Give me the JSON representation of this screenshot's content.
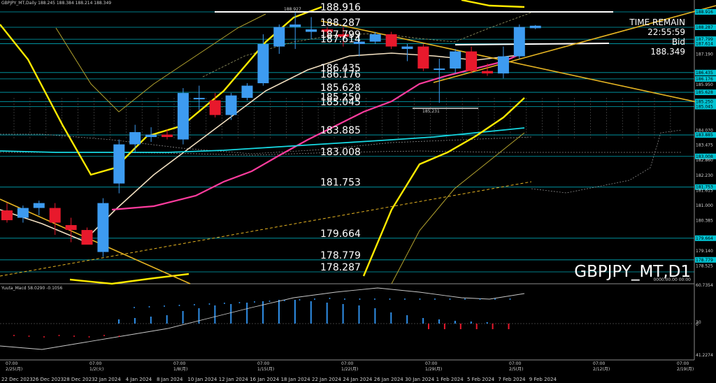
{
  "header": {
    "text": "GBPJPY_MT,Daily  188.245 188.384 188.214 188.349"
  },
  "watermark": "GBPJPY_MT,D1",
  "overlay": {
    "time_remain_label": "TIME REMAIN",
    "time_remain": "22:55:59",
    "bid_label": "Bid",
    "bid": "188.349"
  },
  "macd_label": "Yuuta_Macd 58.0290 -0.1056",
  "macd_zero_label": "0000.00.00 00:00",
  "colors": {
    "bull": "#3d9bf0",
    "bear": "#e8192c",
    "level": "#00c4d4",
    "ma_yellow": "#ffea00",
    "ma_pink": "#ff3c9e",
    "ma_cyan": "#17d9e3",
    "ma_beige": "#f1dfc0",
    "trend": "#e6b422",
    "grid": "#2a6fa3",
    "hist": "#2f8fe8"
  },
  "price_levels": [
    {
      "label": "188.916"
    },
    {
      "label": "188.287"
    },
    {
      "label": "187.799"
    },
    {
      "label": "187.614"
    },
    {
      "label": "186.435"
    },
    {
      "label": "186.176"
    },
    {
      "label": "185.628"
    },
    {
      "label": "185.250"
    },
    {
      "label": "185.045"
    },
    {
      "label": "183.885"
    },
    {
      "label": "183.008"
    },
    {
      "label": "181.753"
    },
    {
      "label": "179.664"
    },
    {
      "label": "178.779"
    },
    {
      "label": "178.287"
    }
  ],
  "extra_labels": [
    {
      "label": "188.927"
    },
    {
      "label": "185.231"
    }
  ],
  "right_axis": [
    "188.916",
    "188.287",
    "187.799",
    "187.614",
    "187.190",
    "186.435",
    "186.176",
    "185.950",
    "185.628",
    "185.250",
    "185.045",
    "184.070",
    "183.885",
    "183.475",
    "183.008",
    "182.860",
    "182.230",
    "181.753",
    "181.615",
    "181.000",
    "180.385",
    "179.664",
    "179.140",
    "178.779",
    "178.525"
  ],
  "macd_axis": [
    "60.7354",
    "30",
    "0",
    "41.2274"
  ],
  "time_axis": [
    {
      "t": "07:00",
      "d": "2/25(月)"
    },
    {
      "t": "07:00",
      "d": "1/2(火)"
    },
    {
      "t": "07:00",
      "d": "1/8(月)"
    },
    {
      "t": "07:00",
      "d": "1/15(月)"
    },
    {
      "t": "07:00",
      "d": "1/22(月)"
    },
    {
      "t": "07:00",
      "d": "1/29(月)"
    },
    {
      "t": "07:00",
      "d": "2/5(月)"
    },
    {
      "t": "07:00",
      "d": "2/12(月)"
    },
    {
      "t": "07:00",
      "d": "2/19(月)"
    }
  ],
  "date_axis": [
    "22 Dec 2023",
    "26 Dec 2023",
    "28 Dec 2023",
    "2 Jan 2024",
    "4 Jan 2024",
    "8 Jan 2024",
    "10 Jan 2024",
    "12 Jan 2024",
    "16 Jan 2024",
    "18 Jan 2024",
    "22 Jan 2024",
    "24 Jan 2024",
    "26 Jan 2024",
    "30 Jan 2024",
    "1 Feb 2024",
    "5 Feb 2024",
    "7 Feb 2024",
    "9 Feb 2024"
  ],
  "chart_data": {
    "type": "candlestick",
    "symbol": "GBPJPY_MT",
    "timeframe": "D1",
    "ylim": [
      178.4,
      189.2
    ],
    "candles": [
      {
        "o": 180.8,
        "h": 181.1,
        "l": 180.3,
        "c": 180.4
      },
      {
        "o": 180.5,
        "h": 181.0,
        "l": 180.3,
        "c": 180.9
      },
      {
        "o": 180.9,
        "h": 181.2,
        "l": 180.6,
        "c": 181.1
      },
      {
        "o": 180.9,
        "h": 181.1,
        "l": 179.8,
        "c": 180.3
      },
      {
        "o": 180.2,
        "h": 180.5,
        "l": 179.5,
        "c": 180.0
      },
      {
        "o": 180.0,
        "h": 180.1,
        "l": 179.4,
        "c": 179.4
      },
      {
        "o": 179.1,
        "h": 181.3,
        "l": 178.9,
        "c": 181.1
      },
      {
        "o": 181.9,
        "h": 183.7,
        "l": 181.5,
        "c": 183.5
      },
      {
        "o": 183.5,
        "h": 184.3,
        "l": 183.2,
        "c": 184.0
      },
      {
        "o": 183.8,
        "h": 184.2,
        "l": 183.6,
        "c": 183.9
      },
      {
        "o": 183.9,
        "h": 184.1,
        "l": 183.7,
        "c": 183.8
      },
      {
        "o": 183.7,
        "h": 185.8,
        "l": 183.5,
        "c": 185.6
      },
      {
        "o": 185.4,
        "h": 185.9,
        "l": 184.9,
        "c": 185.4
      },
      {
        "o": 185.3,
        "h": 185.6,
        "l": 184.6,
        "c": 184.7
      },
      {
        "o": 184.7,
        "h": 185.6,
        "l": 184.5,
        "c": 185.5
      },
      {
        "o": 185.4,
        "h": 186.0,
        "l": 185.3,
        "c": 185.9
      },
      {
        "o": 186.0,
        "h": 188.0,
        "l": 185.9,
        "c": 187.6
      },
      {
        "o": 187.5,
        "h": 188.4,
        "l": 187.2,
        "c": 188.3
      },
      {
        "o": 188.3,
        "h": 188.9,
        "l": 187.4,
        "c": 188.4
      },
      {
        "o": 188.1,
        "h": 188.7,
        "l": 187.8,
        "c": 188.2
      },
      {
        "o": 188.2,
        "h": 188.3,
        "l": 187.9,
        "c": 188.1
      },
      {
        "o": 188.0,
        "h": 188.3,
        "l": 187.5,
        "c": 187.9
      },
      {
        "o": 187.6,
        "h": 187.9,
        "l": 187.1,
        "c": 187.7
      },
      {
        "o": 187.7,
        "h": 188.1,
        "l": 187.6,
        "c": 188.0
      },
      {
        "o": 188.0,
        "h": 188.1,
        "l": 187.4,
        "c": 187.5
      },
      {
        "o": 187.4,
        "h": 187.6,
        "l": 186.9,
        "c": 187.5
      },
      {
        "o": 187.5,
        "h": 187.6,
        "l": 186.5,
        "c": 186.6
      },
      {
        "o": 186.6,
        "h": 187.0,
        "l": 185.2,
        "c": 186.6
      },
      {
        "o": 186.6,
        "h": 187.4,
        "l": 186.4,
        "c": 187.3
      },
      {
        "o": 187.3,
        "h": 187.5,
        "l": 186.4,
        "c": 186.5
      },
      {
        "o": 186.5,
        "h": 186.8,
        "l": 186.3,
        "c": 186.4
      },
      {
        "o": 186.4,
        "h": 187.5,
        "l": 186.2,
        "c": 187.1
      },
      {
        "o": 187.1,
        "h": 188.4,
        "l": 187.0,
        "c": 188.3
      },
      {
        "o": 188.25,
        "h": 188.38,
        "l": 188.21,
        "c": 188.35
      }
    ]
  }
}
